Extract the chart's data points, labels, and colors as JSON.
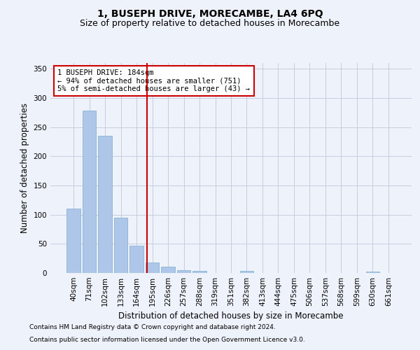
{
  "title": "1, BUSEPH DRIVE, MORECAMBE, LA4 6PQ",
  "subtitle": "Size of property relative to detached houses in Morecambe",
  "xlabel": "Distribution of detached houses by size in Morecambe",
  "ylabel": "Number of detached properties",
  "categories": [
    "40sqm",
    "71sqm",
    "102sqm",
    "133sqm",
    "164sqm",
    "195sqm",
    "226sqm",
    "257sqm",
    "288sqm",
    "319sqm",
    "351sqm",
    "382sqm",
    "413sqm",
    "444sqm",
    "475sqm",
    "506sqm",
    "537sqm",
    "568sqm",
    "599sqm",
    "630sqm",
    "661sqm"
  ],
  "values": [
    110,
    278,
    235,
    95,
    47,
    18,
    11,
    5,
    4,
    0,
    0,
    4,
    0,
    0,
    0,
    0,
    0,
    0,
    0,
    3,
    0
  ],
  "bar_color": "#aec6e8",
  "bar_edge_color": "#7aaed0",
  "vline_color": "#cc0000",
  "annotation_text": "1 BUSEPH DRIVE: 184sqm\n← 94% of detached houses are smaller (751)\n5% of semi-detached houses are larger (43) →",
  "annotation_box_color": "#ffffff",
  "annotation_box_edge": "#cc0000",
  "annotation_fontsize": 7.5,
  "ylim": [
    0,
    360
  ],
  "yticks": [
    0,
    50,
    100,
    150,
    200,
    250,
    300,
    350
  ],
  "title_fontsize": 10,
  "subtitle_fontsize": 9,
  "xlabel_fontsize": 8.5,
  "ylabel_fontsize": 8.5,
  "tick_fontsize": 7.5,
  "footer_line1": "Contains HM Land Registry data © Crown copyright and database right 2024.",
  "footer_line2": "Contains public sector information licensed under the Open Government Licence v3.0.",
  "background_color": "#eef2fa",
  "plot_background": "#eef2fa",
  "footer_fontsize": 6.5
}
